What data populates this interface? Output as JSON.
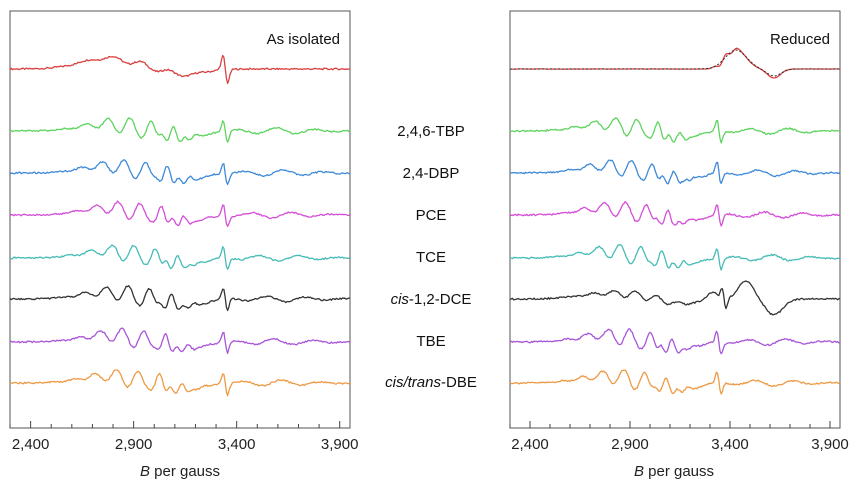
{
  "chart_data": [
    {
      "type": "line",
      "title": "As isolated",
      "xlabel_italic": "B",
      "xlabel_rest": " per gauss",
      "xlim": [
        2300,
        3950
      ],
      "xticks": [
        2400,
        2900,
        3400,
        3900
      ],
      "xtick_labels": [
        "2,400",
        "2,900",
        "3,400",
        "3,900"
      ],
      "series": [
        {
          "name": "As isolated",
          "color": "#d94040",
          "profile": "isolated"
        },
        {
          "name": "2,4,6-TBP",
          "color": "#5fd35f",
          "profile": "rich"
        },
        {
          "name": "2,4-DBP",
          "color": "#3f8ad8",
          "profile": "rich"
        },
        {
          "name": "PCE",
          "color": "#d44fd8",
          "profile": "rich"
        },
        {
          "name": "TCE",
          "color": "#46bcb8",
          "profile": "rich"
        },
        {
          "name": "cis-1,2-DCE",
          "color": "#333333",
          "profile": "rich"
        },
        {
          "name": "TBE",
          "color": "#a855d8",
          "profile": "rich"
        },
        {
          "name": "cis/trans-DBE",
          "color": "#ee9a45",
          "profile": "rich"
        }
      ]
    },
    {
      "type": "line",
      "title": "Reduced",
      "xlabel_italic": "B",
      "xlabel_rest": " per gauss",
      "xlim": [
        2300,
        3950
      ],
      "xticks": [
        2400,
        2900,
        3400,
        3900
      ],
      "xtick_labels": [
        "2,400",
        "2,900",
        "3,400",
        "3,900"
      ],
      "series": [
        {
          "name": "Reduced",
          "color": "#d94040",
          "profile": "reduced",
          "simulation_color": "#333333"
        },
        {
          "name": "2,4,6-TBP",
          "color": "#5fd35f",
          "profile": "rich"
        },
        {
          "name": "2,4-DBP",
          "color": "#3f8ad8",
          "profile": "rich"
        },
        {
          "name": "PCE",
          "color": "#d44fd8",
          "profile": "rich"
        },
        {
          "name": "TCE",
          "color": "#46bcb8",
          "profile": "rich"
        },
        {
          "name": "cis-1,2-DCE",
          "color": "#333333",
          "profile": "mixed"
        },
        {
          "name": "TBE",
          "color": "#a855d8",
          "profile": "rich"
        },
        {
          "name": "cis/trans-DBE",
          "color": "#ee9a45",
          "profile": "rich"
        }
      ]
    }
  ],
  "labels": {
    "tbp": "2,4,6-TBP",
    "dbp": "2,4-DBP",
    "pce": "PCE",
    "tce": "TCE",
    "dce_italic": "cis",
    "dce_rest": "-1,2-DCE",
    "tbe": "TBE",
    "dbe_italic": "cis/trans",
    "dbe_rest": "-DBE"
  }
}
